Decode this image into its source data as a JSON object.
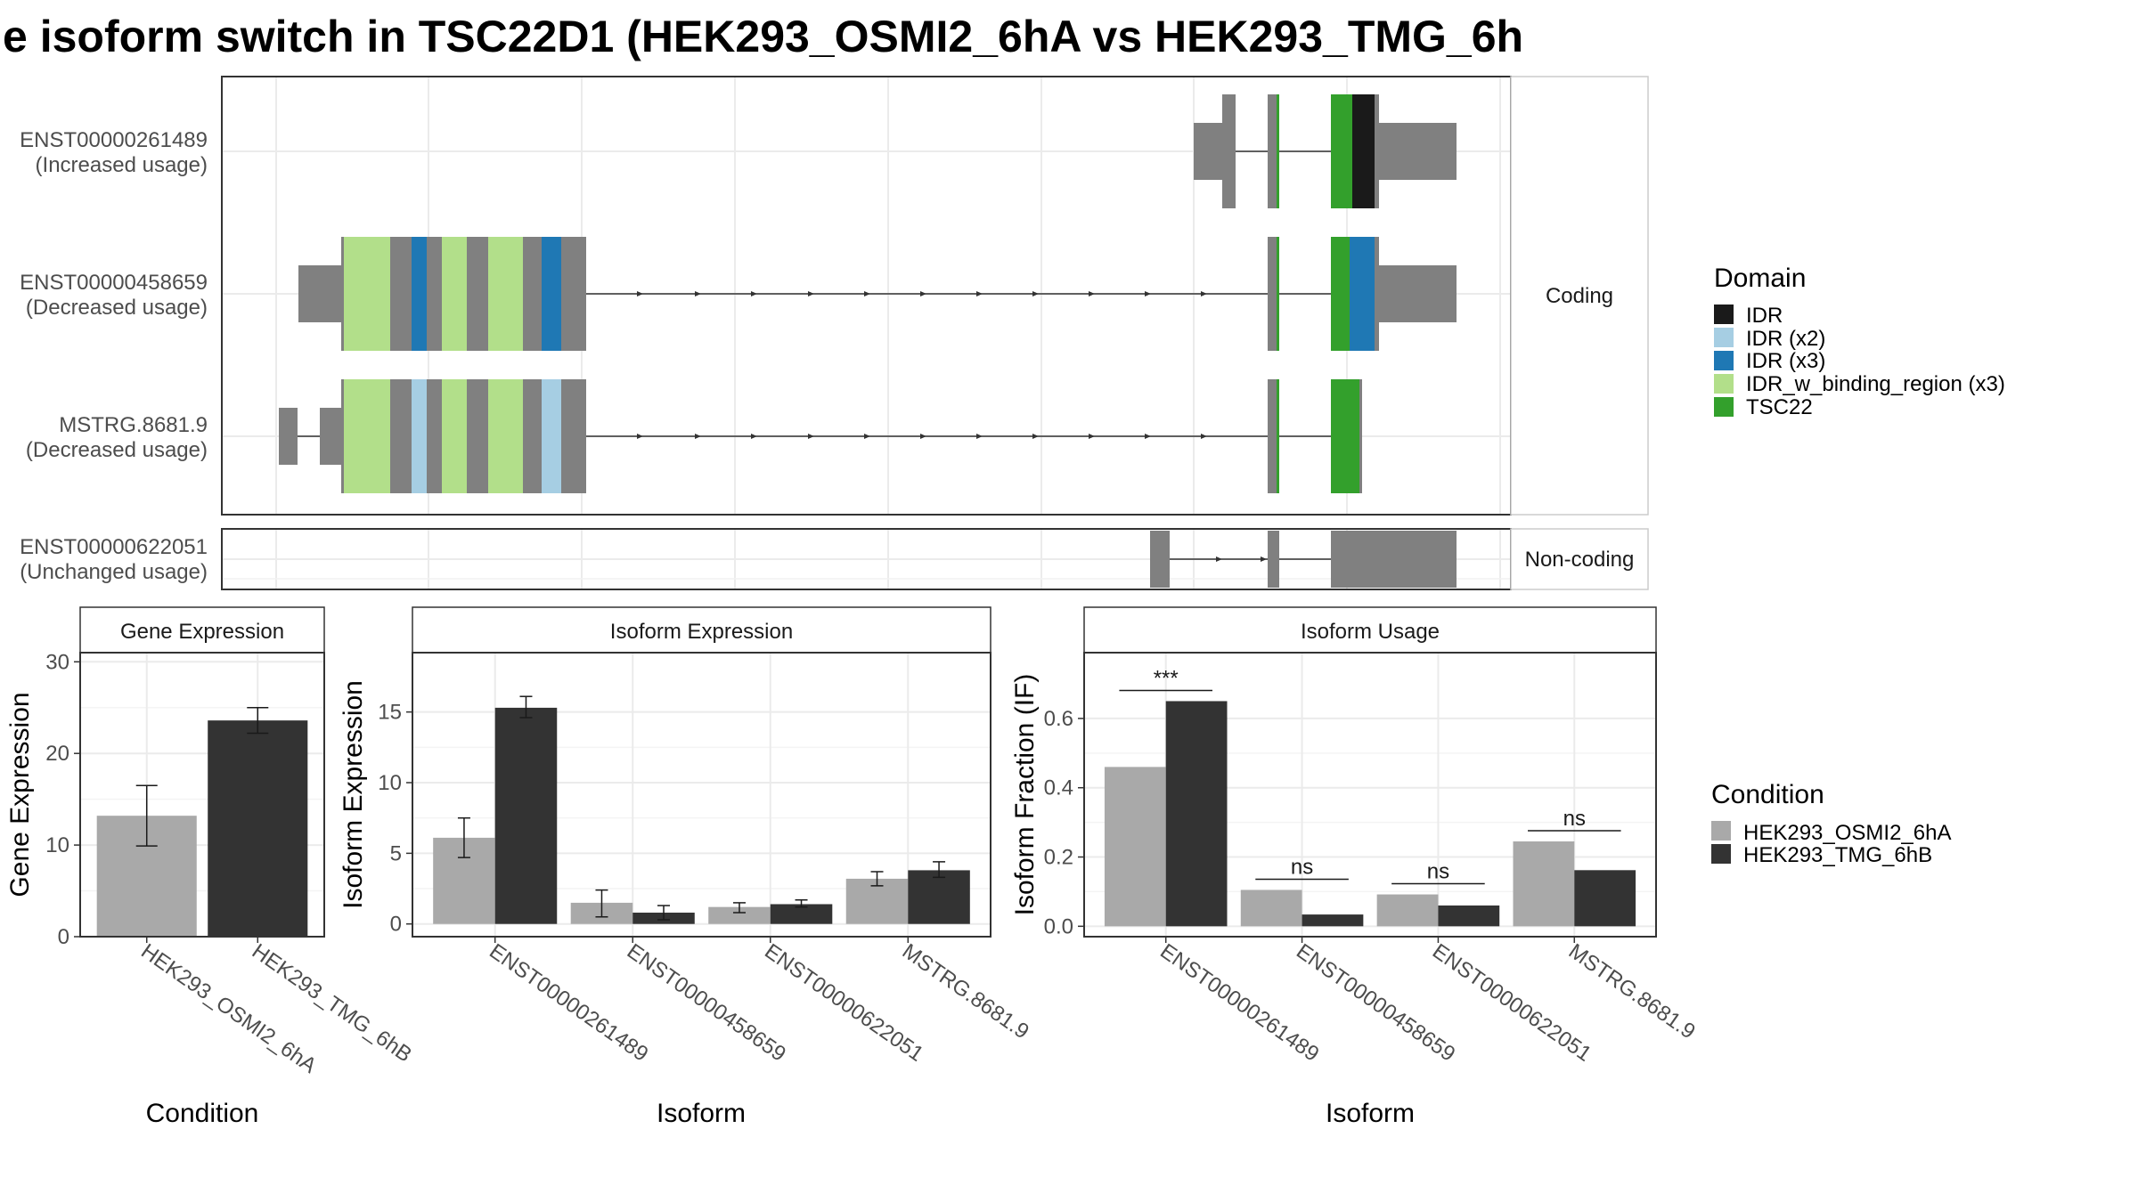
{
  "title": "e isoform switch in TSC22D1 (HEK293_OSMI2_6hA vs HEK293_TMG_6h",
  "colors": {
    "exon": "#808080",
    "IDR": "#1a1a1a",
    "IDR (x2)": "#a6cee3",
    "IDR (x3)": "#1f78b4",
    "IDR_w_binding_region (x3)": "#b2df8a",
    "TSC22": "#33a02c",
    "cond1": "#a9a9a9",
    "cond2": "#333333"
  },
  "structure": {
    "coding_label": "Coding",
    "noncoding_label": "Non-coding",
    "isoforms": [
      {
        "id": "ENST00000261489",
        "usage": "(Increased usage)"
      },
      {
        "id": "ENST00000458659",
        "usage": "(Decreased usage)"
      },
      {
        "id": "MSTRG.8681.9",
        "usage": "(Decreased usage)"
      },
      {
        "id": "ENST00000622051",
        "usage": "(Unchanged usage)"
      }
    ]
  },
  "legend_domain": {
    "title": "Domain",
    "items": [
      "IDR",
      "IDR (x2)",
      "IDR (x3)",
      "IDR_w_binding_region (x3)",
      "TSC22"
    ]
  },
  "legend_condition": {
    "title": "Condition",
    "items": [
      "HEK293_OSMI2_6hA",
      "HEK293_TMG_6hB"
    ]
  },
  "chart_data": [
    {
      "type": "bar",
      "title": "Gene Expression",
      "xlabel": "Condition",
      "ylabel": "Gene Expression",
      "categories": [
        "HEK293_OSMI2_6hA",
        "HEK293_TMG_6hB"
      ],
      "values": [
        13.2,
        23.6
      ],
      "errors": [
        [
          9.9,
          16.5
        ],
        [
          22.2,
          25.0
        ]
      ],
      "ylim": [
        0,
        31
      ],
      "yticks": [
        0,
        10,
        20,
        30
      ]
    },
    {
      "type": "bar",
      "title": "Isoform Expression",
      "xlabel": "Isoform",
      "ylabel": "Isoform Expression",
      "categories": [
        "ENST00000261489",
        "ENST00000458659",
        "ENST00000622051",
        "MSTRG.8681.9"
      ],
      "series": [
        {
          "name": "HEK293_OSMI2_6hA",
          "values": [
            6.1,
            1.5,
            1.2,
            3.2
          ],
          "errors": [
            [
              4.7,
              7.5
            ],
            [
              0.5,
              2.4
            ],
            [
              0.8,
              1.5
            ],
            [
              2.7,
              3.7
            ]
          ]
        },
        {
          "name": "HEK293_TMG_6hB",
          "values": [
            15.3,
            0.8,
            1.4,
            3.8
          ],
          "errors": [
            [
              14.6,
              16.1
            ],
            [
              0.3,
              1.3
            ],
            [
              1.2,
              1.7
            ],
            [
              3.3,
              4.4
            ]
          ]
        }
      ],
      "ylim": [
        -0.9,
        19.2
      ],
      "yticks": [
        0,
        5,
        10,
        15
      ]
    },
    {
      "type": "bar",
      "title": "Isoform Usage",
      "xlabel": "Isoform",
      "ylabel": "Isoform Fraction (IF)",
      "categories": [
        "ENST00000261489",
        "ENST00000458659",
        "ENST00000622051",
        "MSTRG.8681.9"
      ],
      "series": [
        {
          "name": "HEK293_OSMI2_6hA",
          "values": [
            0.46,
            0.105,
            0.092,
            0.245
          ]
        },
        {
          "name": "HEK293_TMG_6hB",
          "values": [
            0.65,
            0.034,
            0.06,
            0.162
          ]
        }
      ],
      "significance": [
        "***",
        "ns",
        "ns",
        "ns"
      ],
      "ylim": [
        -0.03,
        0.79
      ],
      "yticks": [
        0.0,
        0.2,
        0.4,
        0.6
      ],
      "ytick_labels": [
        "0.0",
        "0.2",
        "0.4",
        "0.6"
      ]
    }
  ]
}
